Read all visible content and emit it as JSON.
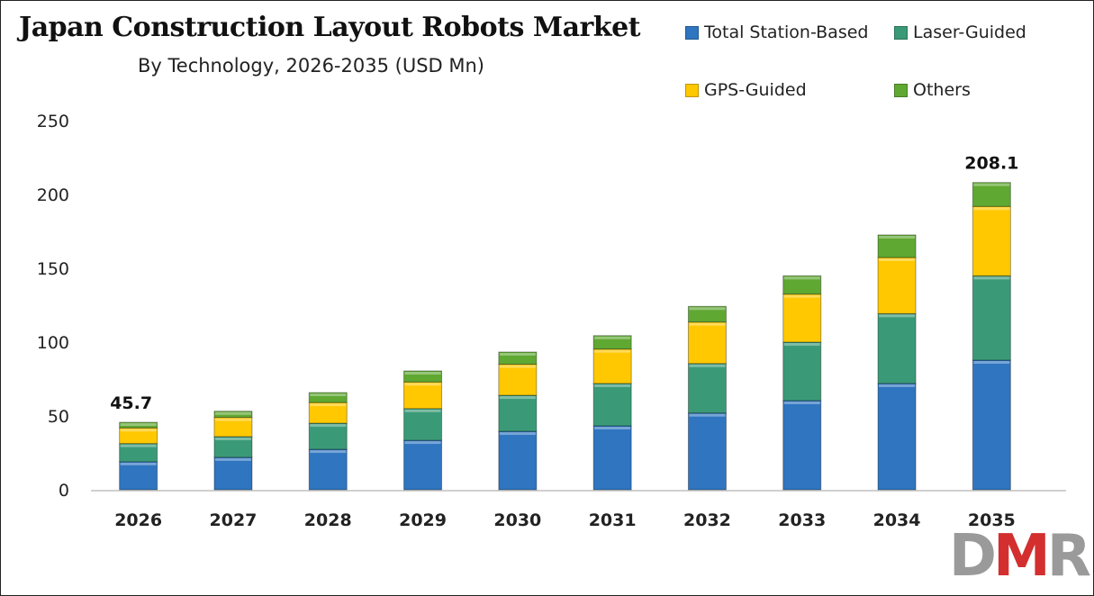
{
  "chart_data": {
    "type": "bar",
    "stacked": true,
    "title": "Japan Construction Layout Robots Market",
    "subtitle": "By Technology, 2026-2035 (USD Mn)",
    "xlabel": "",
    "ylabel": "",
    "ylim": [
      0,
      250
    ],
    "yticks": [
      0,
      50,
      100,
      150,
      200,
      250
    ],
    "grid": false,
    "legend_position": "top-right",
    "categories": [
      "2026",
      "2027",
      "2028",
      "2029",
      "2030",
      "2031",
      "2032",
      "2033",
      "2034",
      "2035"
    ],
    "series": [
      {
        "name": "Total Station-Based",
        "color": "#2F75C0",
        "values": [
          19.0,
          22.0,
          27.4,
          33.5,
          39.6,
          43.3,
          52.0,
          60.4,
          72.0,
          87.8
        ]
      },
      {
        "name": "Laser-Guided",
        "color": "#3A9A78",
        "values": [
          12.3,
          14.0,
          17.7,
          21.5,
          24.4,
          28.7,
          33.5,
          39.6,
          47.3,
          57.1
        ]
      },
      {
        "name": "GPS-Guided",
        "color": "#FFC800",
        "values": [
          10.6,
          13.0,
          14.0,
          18.0,
          21.0,
          23.3,
          28.1,
          32.5,
          38.0,
          47.0
        ]
      },
      {
        "name": "Others",
        "color": "#5FA832",
        "values": [
          3.8,
          4.2,
          6.7,
          7.5,
          8.3,
          9.1,
          10.6,
          12.4,
          15.3,
          16.2
        ]
      }
    ],
    "data_labels": [
      {
        "category": "2026",
        "text": "45.7"
      },
      {
        "category": "2035",
        "text": "208.1"
      }
    ]
  },
  "logo": {
    "text": "DMR",
    "colors": [
      "#9a9a9a",
      "#d32f2f",
      "#9a9a9a"
    ]
  }
}
